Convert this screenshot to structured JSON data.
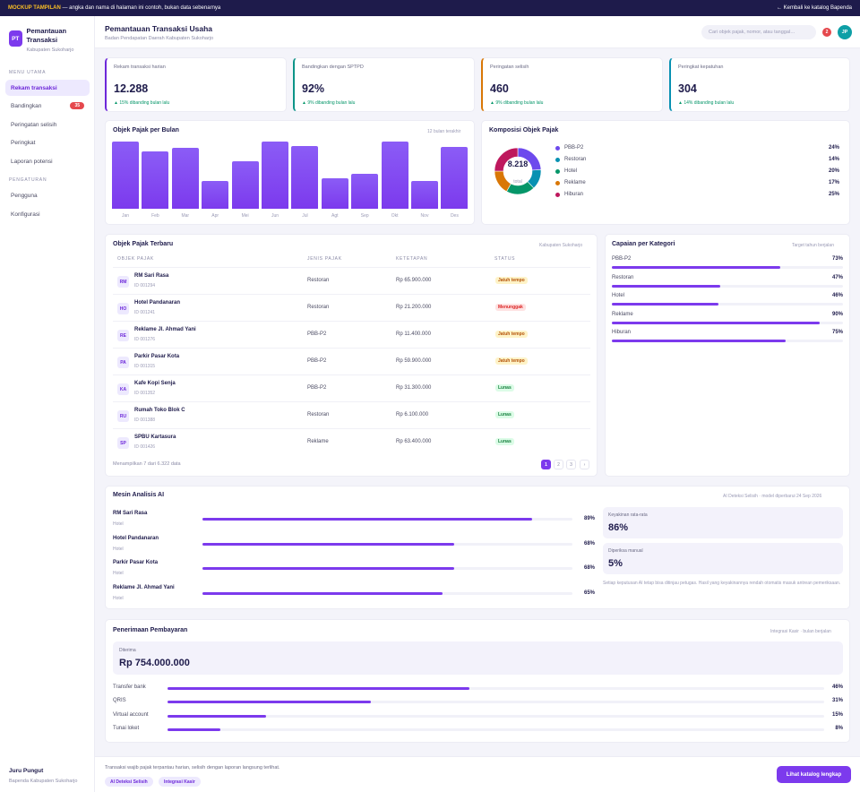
{
  "banner": {
    "tag": "MOCKUP TAMPILAN",
    "message": "— angka dan nama di halaman ini contoh, bukan data sebenarnya",
    "back_link": "← Kembali ke katalog Bapenda"
  },
  "sidebar": {
    "logo": "PT",
    "app_name": "Pemantauan Transaksi",
    "region": "Kabupaten Sukoharjo",
    "section_main": "MENU UTAMA",
    "items": [
      {
        "label": "Rekam transaksi",
        "active": true
      },
      {
        "label": "Bandingkan",
        "badge": "35"
      },
      {
        "label": "Peringatan selisih"
      },
      {
        "label": "Peringkat"
      },
      {
        "label": "Laporan potensi"
      }
    ],
    "section_settings": "PENGATURAN",
    "settings_items": [
      {
        "label": "Pengguna"
      },
      {
        "label": "Konfigurasi"
      }
    ],
    "user": {
      "name": "Juru Pungut",
      "org": "Bapenda Kabupaten Sukoharjo"
    }
  },
  "header": {
    "title": "Pemantauan Transaksi Usaha",
    "subtitle": "Badan Pendapatan Daerah Kabupaten Sukoharjo",
    "search_placeholder": "Cari objek pajak, nomor, atau tanggal…",
    "notifications": "2",
    "avatar": "JP"
  },
  "kpis": [
    {
      "label": "Rekam transaksi harian",
      "value": "12.288",
      "delta": "▲ 15% dibanding bulan lalu",
      "color": "#6d28d9"
    },
    {
      "label": "Bandingkan dengan SPTPD",
      "value": "92%",
      "delta": "▲ 9% dibanding bulan lalu",
      "color": "#0d9488"
    },
    {
      "label": "Peringatan selisih",
      "value": "460",
      "delta": "▲ 9% dibanding bulan lalu",
      "color": "#d97706"
    },
    {
      "label": "Peringkat kepatuhan",
      "value": "304",
      "delta": "▲ 14% dibanding bulan lalu",
      "color": "#0891b2"
    }
  ],
  "monthly": {
    "title": "Objek Pajak per Bulan",
    "note": "12 bulan terakhir",
    "chart_data": {
      "type": "bar",
      "title": "Objek Pajak per Bulan",
      "categories": [
        "Jan",
        "Feb",
        "Mar",
        "Apr",
        "Mei",
        "Jun",
        "Jul",
        "Agt",
        "Sep",
        "Okt",
        "Nov",
        "Des"
      ],
      "values": [
        100,
        85,
        91,
        41,
        71,
        100,
        94,
        45,
        52,
        100,
        42,
        92
      ],
      "ylim": [
        0,
        100
      ]
    }
  },
  "composition": {
    "title": "Komposisi Objek Pajak",
    "total": "8.218",
    "total_label": "total",
    "chart_data": {
      "type": "pie",
      "title": "Komposisi Objek Pajak",
      "labels": [
        "PBB-P2",
        "Restoran",
        "Hotel",
        "Reklame",
        "Hiburan"
      ],
      "values": [
        24,
        14,
        20,
        17,
        25
      ],
      "colors": [
        "#6d4aed",
        "#0891b2",
        "#059669",
        "#d97706",
        "#be185d"
      ]
    },
    "legend": [
      {
        "label": "PBB-P2",
        "pct": "24%"
      },
      {
        "label": "Restoran",
        "pct": "14%"
      },
      {
        "label": "Hotel",
        "pct": "20%"
      },
      {
        "label": "Reklame",
        "pct": "17%"
      },
      {
        "label": "Hiburan",
        "pct": "25%"
      }
    ]
  },
  "table": {
    "title": "Objek Pajak Terbaru",
    "note": "Kabupaten Sukoharjo",
    "columns": [
      "OBJEK PAJAK",
      "JENIS PAJAK",
      "KETETAPAN",
      "STATUS"
    ],
    "rows": [
      {
        "initials": "RM",
        "name": "RM Sari Rasa",
        "id": "ID 001294",
        "type": "Restoran",
        "amount": "Rp 65.900.000",
        "status": "Jatuh tempo",
        "tone": "amber"
      },
      {
        "initials": "HO",
        "name": "Hotel Pandanaran",
        "id": "ID 001241",
        "type": "Restoran",
        "amount": "Rp 21.200.000",
        "status": "Menunggak",
        "tone": "red"
      },
      {
        "initials": "RE",
        "name": "Reklame Jl. Ahmad Yani",
        "id": "ID 001276",
        "type": "PBB-P2",
        "amount": "Rp 11.400.000",
        "status": "Jatuh tempo",
        "tone": "amber"
      },
      {
        "initials": "PA",
        "name": "Parkir Pasar Kota",
        "id": "ID 001315",
        "type": "PBB-P2",
        "amount": "Rp 59.900.000",
        "status": "Jatuh tempo",
        "tone": "amber"
      },
      {
        "initials": "KA",
        "name": "Kafe Kopi Senja",
        "id": "ID 001352",
        "type": "PBB-P2",
        "amount": "Rp 31.300.000",
        "status": "Lunas",
        "tone": "green"
      },
      {
        "initials": "RU",
        "name": "Rumah Toko Blok C",
        "id": "ID 001388",
        "type": "Restoran",
        "amount": "Rp 6.100.000",
        "status": "Lunas",
        "tone": "green"
      },
      {
        "initials": "SP",
        "name": "SPBU Kartasura",
        "id": "ID 001426",
        "type": "Reklame",
        "amount": "Rp 63.400.000",
        "status": "Lunas",
        "tone": "green"
      }
    ],
    "footer": "Menampilkan 7 dari 6.322 data",
    "pages": [
      "1",
      "2",
      "3",
      "›"
    ]
  },
  "achievement": {
    "title": "Capaian per Kategori",
    "note": "Target tahun berjalan",
    "items": [
      {
        "label": "PBB-P2",
        "pct": "73%",
        "value": 0.73
      },
      {
        "label": "Restoran",
        "pct": "47%",
        "value": 0.47
      },
      {
        "label": "Hotel",
        "pct": "46%",
        "value": 0.46
      },
      {
        "label": "Reklame",
        "pct": "90%",
        "value": 0.9
      },
      {
        "label": "Hiburan",
        "pct": "75%",
        "value": 0.75
      }
    ]
  },
  "ai": {
    "title": "Mesin Analisis AI",
    "note": "AI Deteksi Selisih · model diperbarui 24 Sep 2026",
    "items": [
      {
        "name": "RM Sari Rasa",
        "sub": "Hotel",
        "pct": "89%",
        "value": 0.89
      },
      {
        "name": "Hotel Pandanaran",
        "sub": "Hotel",
        "pct": "68%",
        "value": 0.68
      },
      {
        "name": "Parkir Pasar Kota",
        "sub": "Hotel",
        "pct": "68%",
        "value": 0.68
      },
      {
        "name": "Reklame Jl. Ahmad Yani",
        "sub": "Hotel",
        "pct": "65%",
        "value": 0.65
      }
    ],
    "confidence_label": "Keyakinan rata-rata",
    "confidence_value": "86%",
    "manual_label": "Diperiksa manual",
    "manual_value": "5%",
    "disclaimer": "Setiap keputusan AI tetap bisa ditinjau petugas. Hasil yang keyakinannya rendah otomatis masuk antrean pemeriksaan."
  },
  "payment": {
    "title": "Penerimaan Pembayaran",
    "note": "Integrasi Kasir · bulan berjalan",
    "received_label": "Diterima",
    "received_value": "Rp 754.000.000",
    "items": [
      {
        "label": "Transfer bank",
        "pct": "46%",
        "value": 0.46
      },
      {
        "label": "QRIS",
        "pct": "31%",
        "value": 0.31
      },
      {
        "label": "Virtual account",
        "pct": "15%",
        "value": 0.15
      },
      {
        "label": "Tunai loket",
        "pct": "8%",
        "value": 0.08
      }
    ]
  },
  "footer": {
    "text": "Transaksi wajib pajak terpantau harian, selisih dengan laporan langsung terlihat.",
    "chips": [
      "AI Deteksi Selisih",
      "Integrasi Kasir"
    ],
    "cta": "Lihat katalog lengkap"
  }
}
